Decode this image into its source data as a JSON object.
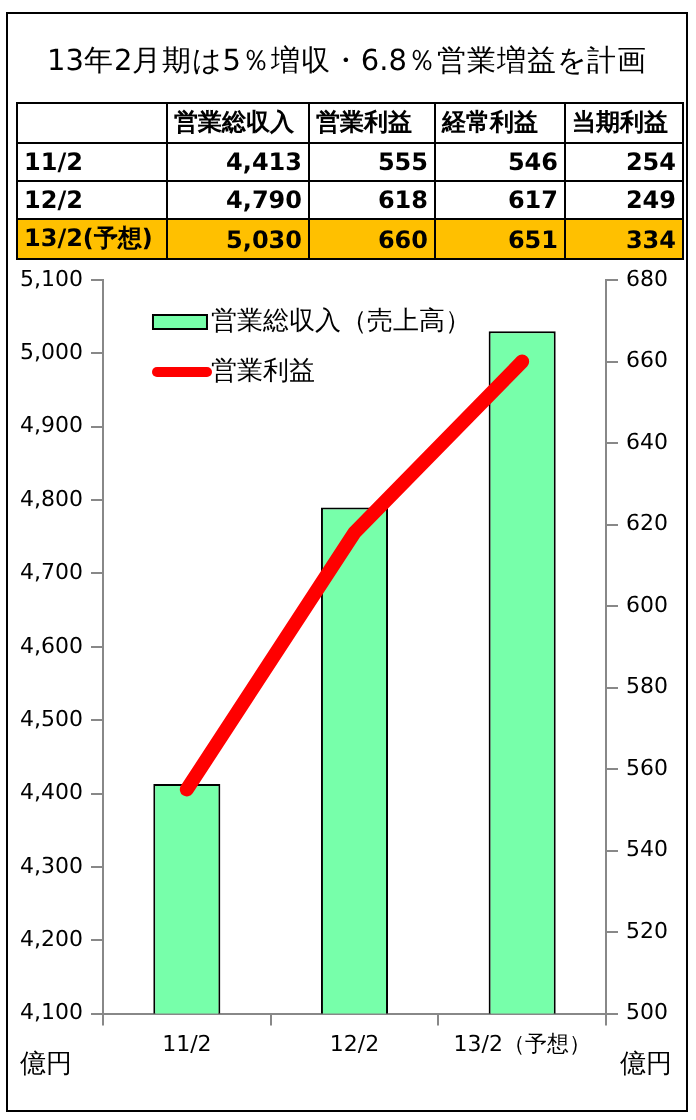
{
  "chart_data": [
    {
      "type": "other",
      "title": "13年2月期は5％増収・6.8％営業増益を計画",
      "categories": [
        "11/2",
        "12/2",
        "13/2(予想)"
      ],
      "data_labels": true,
      "series": [
        {
          "name": "営業総収入",
          "colors": [
            "#ffffff",
            "#ffffff",
            "#ffc000"
          ],
          "values": [
            4413,
            4790,
            5030
          ],
          "value_labels": [
            "4,413",
            "4,790",
            "5,030"
          ]
        },
        {
          "name": "営業利益",
          "colors": [
            "#ffffff",
            "#ffffff",
            "#ffc000"
          ],
          "values": [
            555,
            618,
            660
          ]
        },
        {
          "name": "経常利益",
          "colors": [
            "#ffffff",
            "#ffffff",
            "#ffc000"
          ],
          "values": [
            546,
            617,
            651
          ]
        },
        {
          "name": "当期利益",
          "colors": [
            "#ffffff",
            "#ffffff",
            "#ffc000"
          ],
          "values": [
            254,
            249,
            334
          ]
        }
      ]
    },
    {
      "type": "bar",
      "categories": [
        "11/2",
        "12/2",
        "13/2（予想）"
      ],
      "ylabel": "億円",
      "y2label": "億円",
      "ylim": [
        4100,
        5100
      ],
      "yticks": [
        {
          "value": 4100,
          "label": "4,100"
        },
        {
          "value": 4200,
          "label": "4,200"
        },
        {
          "value": 4300,
          "label": "4,300"
        },
        {
          "value": 4400,
          "label": "4,400"
        },
        {
          "value": 4500,
          "label": "4,500"
        },
        {
          "value": 4600,
          "label": "4,600"
        },
        {
          "value": 4700,
          "label": "4,700"
        },
        {
          "value": 4800,
          "label": "4,800"
        },
        {
          "value": 4900,
          "label": "4,900"
        },
        {
          "value": 5000,
          "label": "5,000"
        },
        {
          "value": 5100,
          "label": "5,100"
        }
      ],
      "y2lim": [
        500,
        680
      ],
      "y2ticks": [
        500,
        520,
        540,
        560,
        580,
        600,
        620,
        640,
        660,
        680
      ],
      "grid": false,
      "legend": "top left",
      "marker": "none",
      "series": [
        {
          "name": "営業総収入（売上高）",
          "type": "bar",
          "color": "#77ffaa",
          "values": [
            4413,
            4790,
            5030
          ]
        },
        {
          "name": "営業利益",
          "type": "line",
          "axis": "y2",
          "color": "#ff0000",
          "values": [
            555,
            618,
            660
          ]
        }
      ]
    }
  ]
}
